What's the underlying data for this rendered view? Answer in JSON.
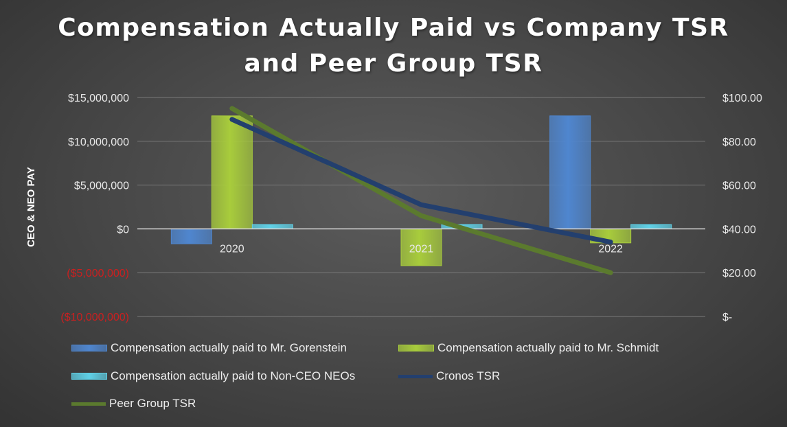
{
  "colors": {
    "gorenstein": "#4f86cf",
    "schmidt": "#a8cc3c",
    "non_ceo": "#5fd0e6",
    "cronos_tsr": "#233f6e",
    "peer_tsr": "#5b7a2e",
    "negative_tick": "#cc1f1f",
    "axis_text": "#e8e8e8",
    "grid": "#7a7a7a"
  },
  "chart_data": {
    "type": "bar",
    "title": "Compensation Actually Paid vs Company TSR and Peer Group TSR",
    "title_lines": [
      "Compensation Actually Paid vs Company TSR",
      "and Peer Group TSR"
    ],
    "categories": [
      "2020",
      "2021",
      "2022"
    ],
    "ylabel": "CEO & NEO PAY",
    "ylim": [
      -10000000,
      15000000
    ],
    "y_ticks": [
      15000000,
      10000000,
      5000000,
      0,
      -5000000,
      -10000000
    ],
    "y_tick_labels": [
      "$15,000,000",
      "$10,000,000",
      "$5,000,000",
      "$0",
      "($5,000,000)",
      "($10,000,000)"
    ],
    "y2lim": [
      0,
      100
    ],
    "y2_ticks": [
      100,
      80,
      60,
      40,
      20,
      0
    ],
    "y2_tick_labels": [
      "$100.00",
      "$80.00",
      "$60.00",
      "$40.00",
      "$20.00",
      "$-"
    ],
    "grid": true,
    "legend_position": "bottom",
    "series": [
      {
        "name": "Compensation actually paid to Mr. Gorenstein",
        "kind": "bar",
        "axis": "left",
        "color_key": "gorenstein",
        "values": [
          -1700000,
          null,
          12900000
        ]
      },
      {
        "name": "Compensation actually paid to Mr. Schmidt",
        "kind": "bar",
        "axis": "left",
        "color_key": "schmidt",
        "values": [
          12900000,
          -4200000,
          -1600000
        ]
      },
      {
        "name": "Compensation actually paid to Non-CEO NEOs",
        "kind": "bar",
        "axis": "left",
        "color_key": "non_ceo",
        "values": [
          500000,
          500000,
          500000
        ]
      },
      {
        "name": "Cronos TSR",
        "kind": "line",
        "axis": "right",
        "color_key": "cronos_tsr",
        "values": [
          90,
          51,
          34
        ]
      },
      {
        "name": "Peer Group TSR",
        "kind": "line",
        "axis": "right",
        "color_key": "peer_tsr",
        "values": [
          95,
          46,
          20
        ]
      }
    ]
  }
}
